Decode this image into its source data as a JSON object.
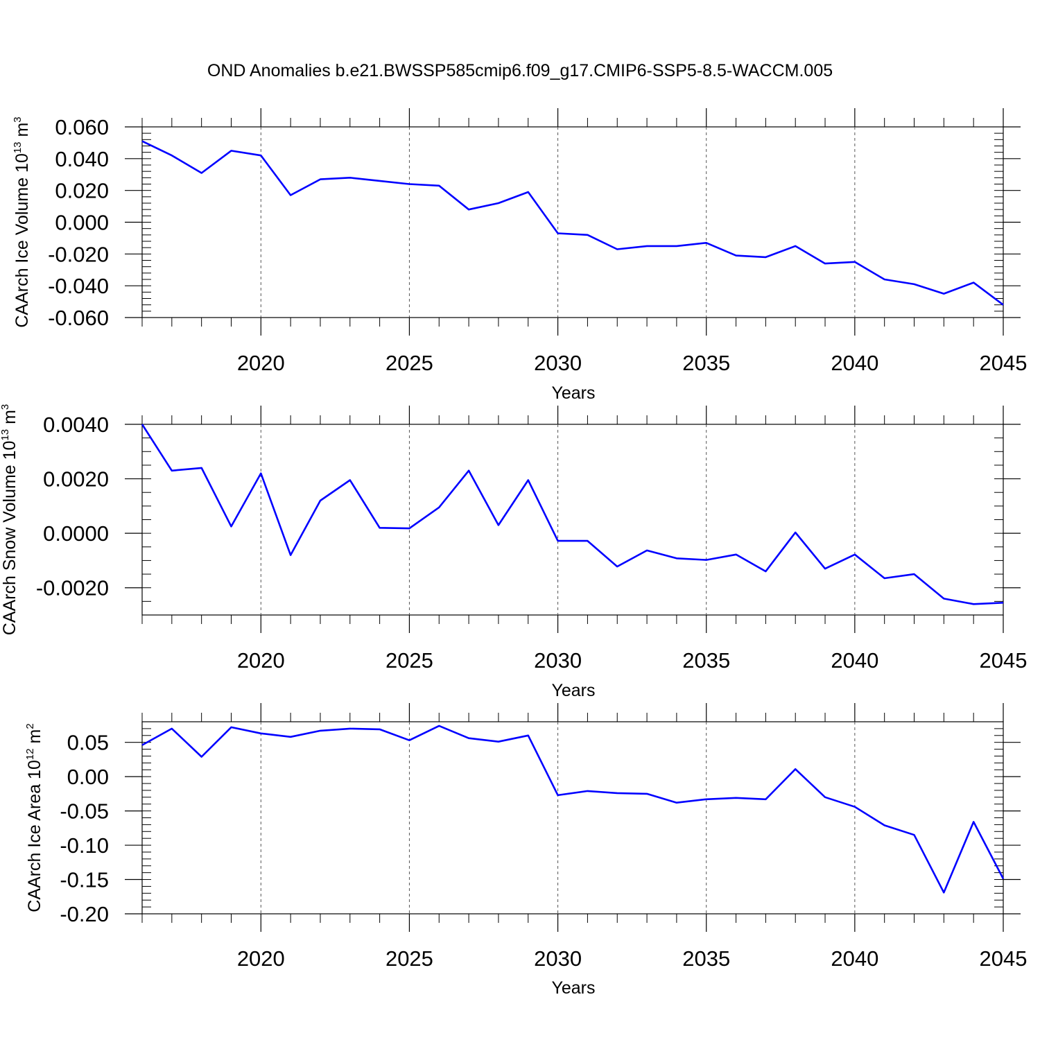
{
  "figure": {
    "title": "OND Anomalies b.e21.BWSSP585cmip6.f09_g17.CMIP6-SSP5-8.5-WACCM.005"
  },
  "style": {
    "line_color": "#0000ff",
    "grid": "dashed vertical at labeled years"
  },
  "chart_data": [
    {
      "type": "line",
      "xlabel": "Years",
      "ylabel_main": "CAArch Ice Volume 10",
      "ylabel_exp": "13",
      "ylabel_unit": " m",
      "ylabel_unit_exp": "3",
      "xlim": [
        2016,
        2045
      ],
      "ylim": [
        -0.06,
        0.06
      ],
      "x_ticks": [
        2020,
        2025,
        2030,
        2035,
        2040,
        2045
      ],
      "y_ticks": [
        0.06,
        0.04,
        0.02,
        0.0,
        -0.02,
        -0.04,
        -0.06
      ],
      "y_tick_labels": [
        "0.060",
        "0.040",
        "0.020",
        "0.000",
        "-0.020",
        "-0.040",
        "-0.060"
      ],
      "y_minor_step": 0.004,
      "x": [
        2016,
        2017,
        2018,
        2019,
        2020,
        2021,
        2022,
        2023,
        2024,
        2025,
        2026,
        2027,
        2028,
        2029,
        2030,
        2031,
        2032,
        2033,
        2034,
        2035,
        2036,
        2037,
        2038,
        2039,
        2040,
        2041,
        2042,
        2043,
        2044,
        2045
      ],
      "y": [
        0.051,
        0.042,
        0.031,
        0.045,
        0.042,
        0.017,
        0.027,
        0.028,
        0.026,
        0.024,
        0.023,
        0.008,
        0.012,
        0.019,
        -0.007,
        -0.008,
        -0.017,
        -0.015,
        -0.015,
        -0.013,
        -0.021,
        -0.022,
        -0.015,
        -0.026,
        -0.025,
        -0.036,
        -0.039,
        -0.045,
        -0.038,
        -0.052
      ]
    },
    {
      "type": "line",
      "xlabel": "Years",
      "ylabel_main": "CAArch Snow Volume 10",
      "ylabel_exp": "13",
      "ylabel_unit": " m",
      "ylabel_unit_exp": "3",
      "xlim": [
        2016,
        2045
      ],
      "ylim": [
        -0.003,
        0.004
      ],
      "x_ticks": [
        2020,
        2025,
        2030,
        2035,
        2040,
        2045
      ],
      "y_ticks": [
        0.004,
        0.002,
        0.0,
        -0.002
      ],
      "y_tick_labels": [
        "0.0040",
        "0.0020",
        "0.0000",
        "-0.0020"
      ],
      "y_minor_step": 0.0005,
      "x": [
        2016,
        2017,
        2018,
        2019,
        2020,
        2021,
        2022,
        2023,
        2024,
        2025,
        2026,
        2027,
        2028,
        2029,
        2030,
        2031,
        2032,
        2033,
        2034,
        2035,
        2036,
        2037,
        2038,
        2039,
        2040,
        2041,
        2042,
        2043,
        2044,
        2045
      ],
      "y": [
        0.004,
        0.0023,
        0.0024,
        0.00025,
        0.0022,
        -0.0008,
        0.0012,
        0.00195,
        0.0002,
        0.00018,
        0.00095,
        0.0023,
        0.0003,
        0.00195,
        -0.00028,
        -0.00028,
        -0.00122,
        -0.00063,
        -0.00092,
        -0.00098,
        -0.00078,
        -0.0014,
        3e-05,
        -0.0013,
        -0.00078,
        -0.00165,
        -0.0015,
        -0.0024,
        -0.0026,
        -0.00255
      ]
    },
    {
      "type": "line",
      "xlabel": "Years",
      "ylabel_main": "CAArch Ice Area 10",
      "ylabel_exp": "12",
      "ylabel_unit": " m",
      "ylabel_unit_exp": "2",
      "xlim": [
        2016,
        2045
      ],
      "ylim": [
        -0.2,
        0.08
      ],
      "x_ticks": [
        2020,
        2025,
        2030,
        2035,
        2040,
        2045
      ],
      "y_ticks": [
        0.05,
        0.0,
        -0.05,
        -0.1,
        -0.15,
        -0.2
      ],
      "y_tick_labels": [
        "0.05",
        "0.00",
        "-0.05",
        "-0.10",
        "-0.15",
        "-0.20"
      ],
      "y_minor_step": 0.01,
      "x": [
        2016,
        2017,
        2018,
        2019,
        2020,
        2021,
        2022,
        2023,
        2024,
        2025,
        2026,
        2027,
        2028,
        2029,
        2030,
        2031,
        2032,
        2033,
        2034,
        2035,
        2036,
        2037,
        2038,
        2039,
        2040,
        2041,
        2042,
        2043,
        2044,
        2045
      ],
      "y": [
        0.046,
        0.07,
        0.029,
        0.072,
        0.063,
        0.058,
        0.067,
        0.07,
        0.069,
        0.053,
        0.074,
        0.056,
        0.051,
        0.06,
        -0.027,
        -0.021,
        -0.024,
        -0.025,
        -0.038,
        -0.033,
        -0.031,
        -0.033,
        0.011,
        -0.03,
        -0.044,
        -0.071,
        -0.085,
        -0.169,
        -0.066,
        -0.149
      ]
    }
  ]
}
